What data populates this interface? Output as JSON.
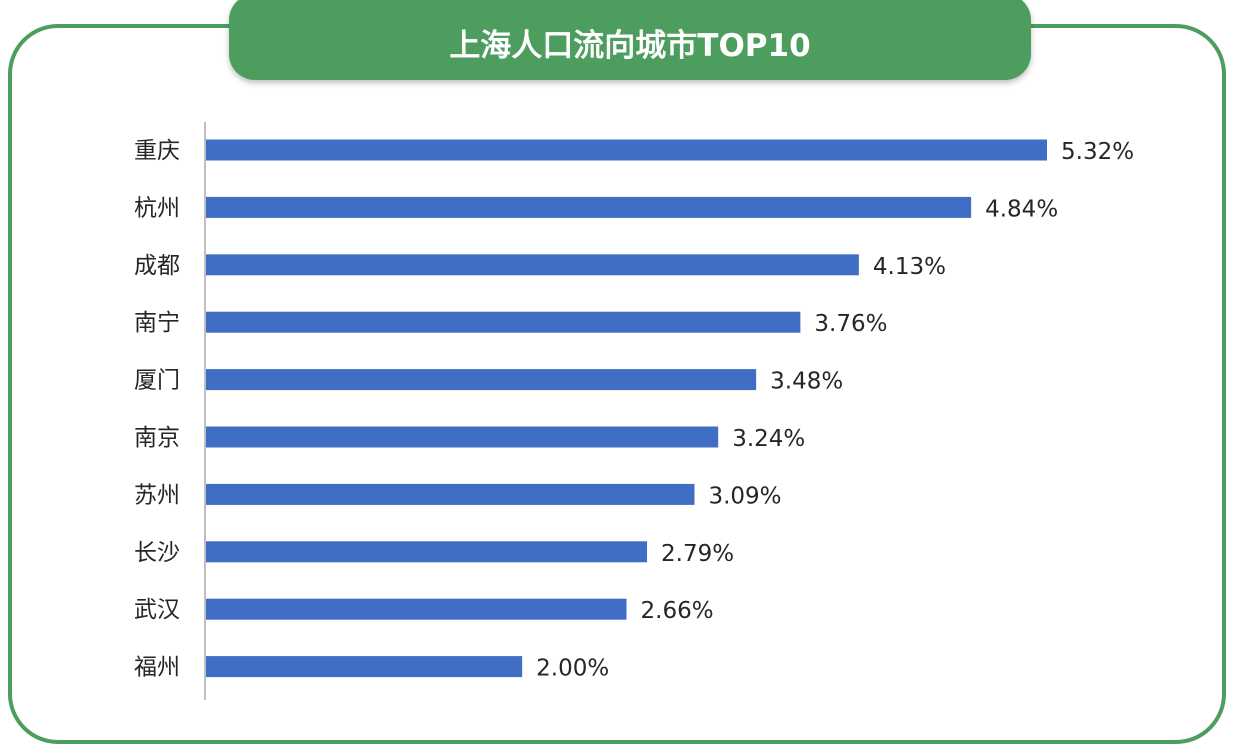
{
  "colors": {
    "frame": "#4c9d5e",
    "banner": "#4c9d5e",
    "bar": "#3f6ec4",
    "axis": "#bfbfbf",
    "text": "#262626"
  },
  "chart_data": {
    "type": "bar",
    "orientation": "horizontal",
    "title": "上海人口流向城市TOP10",
    "categories": [
      "重庆",
      "杭州",
      "成都",
      "南宁",
      "厦门",
      "南京",
      "苏州",
      "长沙",
      "武汉",
      "福州"
    ],
    "values": [
      5.32,
      4.84,
      4.13,
      3.76,
      3.48,
      3.24,
      3.09,
      2.79,
      2.66,
      2.0
    ],
    "value_labels": [
      "5.32%",
      "4.84%",
      "4.13%",
      "3.76%",
      "3.48%",
      "3.24%",
      "3.09%",
      "2.79%",
      "2.66%",
      "2.00%"
    ],
    "xlim": [
      0,
      5.32
    ],
    "grid": false,
    "legend": "none"
  }
}
